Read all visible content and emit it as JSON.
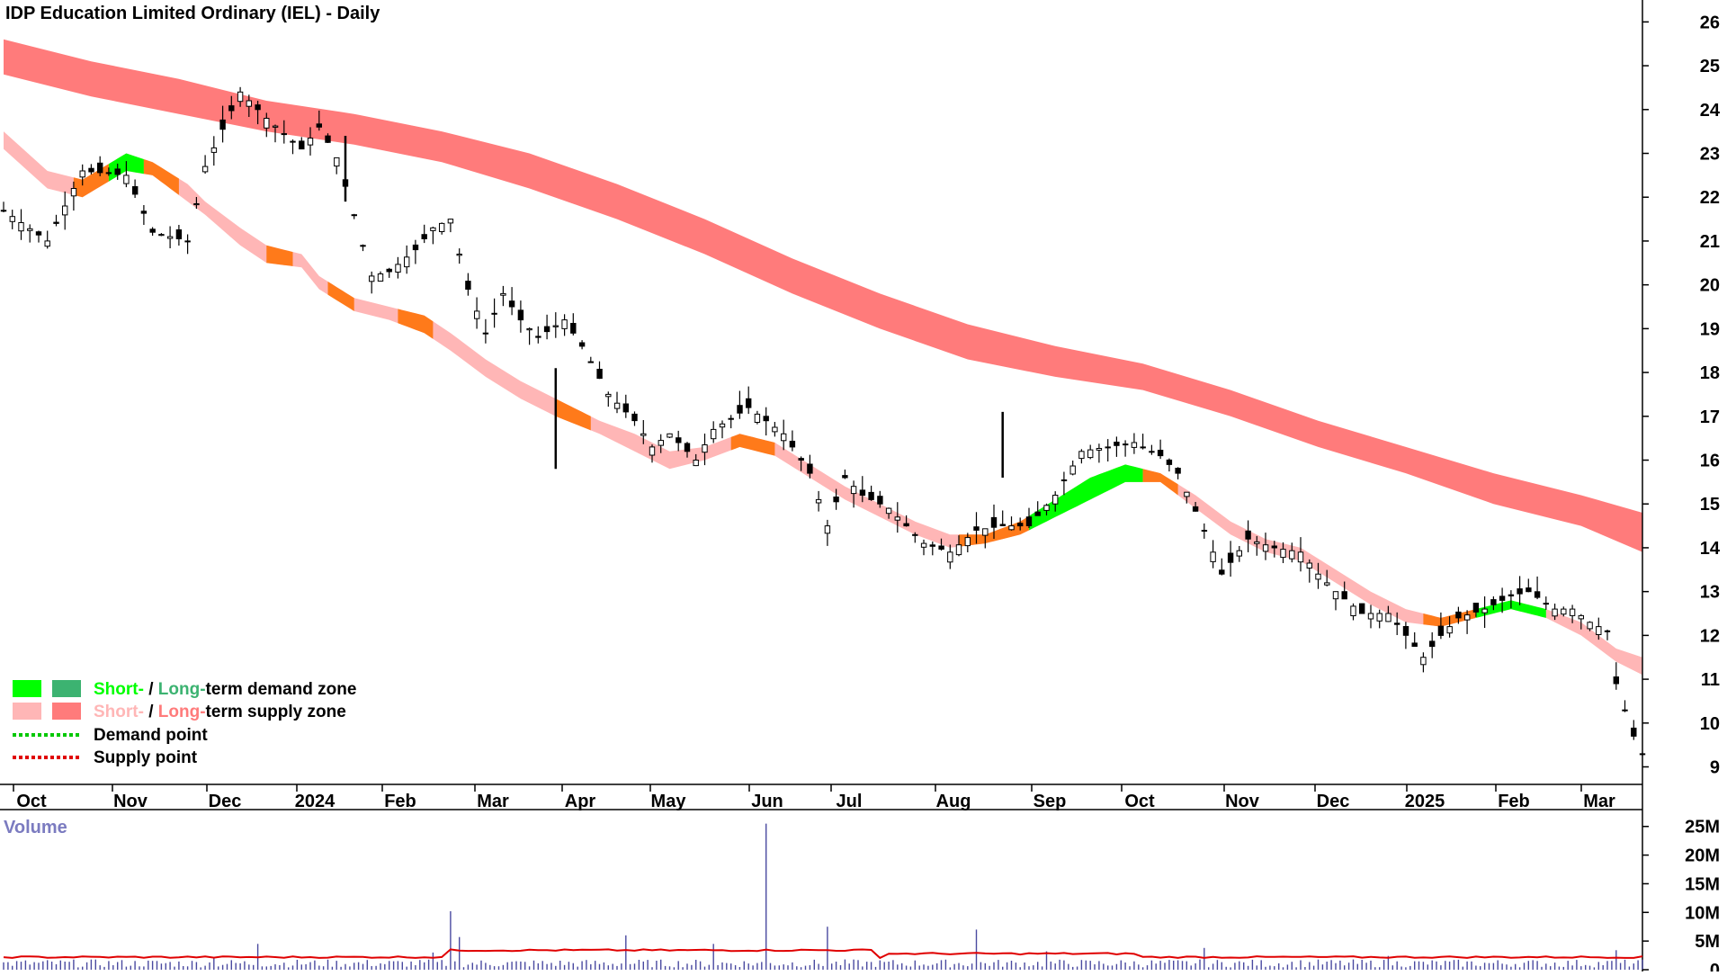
{
  "chart_data": {
    "type": "candlestick",
    "title": "IDP Education Limited Ordinary (IEL) - Daily",
    "x_tick_labels": [
      "Oct",
      "Nov",
      "Dec",
      "2024",
      "Feb",
      "Mar",
      "Apr",
      "May",
      "Jun",
      "Jul",
      "Aug",
      "Sep",
      "Oct",
      "Nov",
      "Dec",
      "2025",
      "Feb",
      "Mar"
    ],
    "price_axis": {
      "ticks": [
        9,
        10,
        11,
        12,
        13,
        14,
        15,
        16,
        17,
        18,
        19,
        20,
        21,
        22,
        23,
        24,
        25,
        26
      ],
      "ylim": [
        8.6,
        26.5
      ]
    },
    "price_path": [
      [
        0,
        21.7
      ],
      [
        5,
        21.0
      ],
      [
        9,
        22.6
      ],
      [
        14,
        22.5
      ],
      [
        17,
        21.2
      ],
      [
        21,
        21.0
      ],
      [
        23,
        22.7
      ],
      [
        27,
        24.4
      ],
      [
        30,
        23.8
      ],
      [
        34,
        23.1
      ],
      [
        36,
        23.6
      ],
      [
        38,
        22.9
      ],
      [
        40,
        21.6
      ],
      [
        42,
        20.2
      ],
      [
        44,
        20.3
      ],
      [
        47,
        20.8
      ],
      [
        49,
        21.3
      ],
      [
        51,
        21.5
      ],
      [
        53,
        19.9
      ],
      [
        55,
        18.9
      ],
      [
        57,
        19.8
      ],
      [
        59,
        19.2
      ],
      [
        61,
        18.8
      ],
      [
        64,
        19.2
      ],
      [
        66,
        18.6
      ],
      [
        69,
        17.5
      ],
      [
        72,
        16.9
      ],
      [
        74,
        16.3
      ],
      [
        76,
        16.6
      ],
      [
        79,
        16.0
      ],
      [
        81,
        16.7
      ],
      [
        85,
        17.2
      ],
      [
        89,
        16.6
      ],
      [
        92,
        15.7
      ],
      [
        94,
        14.5
      ],
      [
        96,
        15.6
      ],
      [
        98,
        15.2
      ],
      [
        101,
        14.9
      ],
      [
        105,
        14.1
      ],
      [
        108,
        13.9
      ],
      [
        111,
        14.4
      ],
      [
        114,
        14.5
      ],
      [
        117,
        14.5
      ],
      [
        120,
        15.2
      ],
      [
        123,
        16.2
      ],
      [
        126,
        16.3
      ],
      [
        129,
        16.4
      ],
      [
        132,
        16.1
      ],
      [
        134,
        15.7
      ],
      [
        137,
        14.4
      ],
      [
        139,
        13.4
      ],
      [
        142,
        14.2
      ],
      [
        145,
        14.0
      ],
      [
        148,
        13.9
      ],
      [
        150,
        13.4
      ],
      [
        152,
        13.0
      ],
      [
        155,
        12.5
      ],
      [
        158,
        12.5
      ],
      [
        160,
        12.0
      ],
      [
        162,
        11.5
      ],
      [
        164,
        12.0
      ],
      [
        166,
        12.4
      ],
      [
        169,
        12.6
      ],
      [
        172,
        12.9
      ],
      [
        174,
        13.0
      ],
      [
        177,
        12.6
      ],
      [
        179,
        12.6
      ],
      [
        181,
        12.3
      ],
      [
        183,
        12.1
      ],
      [
        184,
        10.9
      ],
      [
        185,
        10.3
      ],
      [
        186,
        9.7
      ],
      [
        187,
        9.3
      ]
    ],
    "short_term_band": [
      [
        0,
        23.5,
        23.1
      ],
      [
        5,
        22.6,
        22.2
      ],
      [
        9,
        22.4,
        22.0
      ],
      [
        14,
        23.0,
        22.6
      ],
      [
        17,
        22.8,
        22.5
      ],
      [
        21,
        22.3,
        21.9
      ],
      [
        23,
        21.9,
        21.6
      ],
      [
        27,
        21.3,
        20.9
      ],
      [
        30,
        20.9,
        20.5
      ],
      [
        34,
        20.7,
        20.4
      ],
      [
        36,
        20.2,
        19.9
      ],
      [
        40,
        19.7,
        19.4
      ],
      [
        44,
        19.5,
        19.2
      ],
      [
        48,
        19.3,
        18.9
      ],
      [
        51,
        18.9,
        18.5
      ],
      [
        55,
        18.3,
        17.9
      ],
      [
        59,
        17.8,
        17.4
      ],
      [
        63,
        17.4,
        17.0
      ],
      [
        68,
        16.9,
        16.6
      ],
      [
        72,
        16.6,
        16.2
      ],
      [
        76,
        16.2,
        15.8
      ],
      [
        80,
        16.3,
        16.0
      ],
      [
        84,
        16.6,
        16.3
      ],
      [
        88,
        16.4,
        16.1
      ],
      [
        92,
        15.9,
        15.6
      ],
      [
        96,
        15.4,
        15.1
      ],
      [
        100,
        15.0,
        14.7
      ],
      [
        104,
        14.6,
        14.3
      ],
      [
        108,
        14.3,
        14.0
      ],
      [
        112,
        14.3,
        14.1
      ],
      [
        116,
        14.6,
        14.3
      ],
      [
        120,
        15.1,
        14.7
      ],
      [
        124,
        15.6,
        15.1
      ],
      [
        128,
        15.9,
        15.5
      ],
      [
        132,
        15.7,
        15.5
      ],
      [
        136,
        15.2,
        14.9
      ],
      [
        140,
        14.6,
        14.3
      ],
      [
        144,
        14.2,
        13.9
      ],
      [
        148,
        14.0,
        13.7
      ],
      [
        152,
        13.5,
        13.2
      ],
      [
        156,
        13.0,
        12.7
      ],
      [
        160,
        12.6,
        12.3
      ],
      [
        164,
        12.4,
        12.2
      ],
      [
        168,
        12.6,
        12.4
      ],
      [
        172,
        12.8,
        12.6
      ],
      [
        176,
        12.6,
        12.4
      ],
      [
        180,
        12.3,
        12.0
      ],
      [
        184,
        11.7,
        11.4
      ],
      [
        187,
        11.5,
        11.1
      ]
    ],
    "long_term_band": [
      [
        0,
        25.6,
        24.8
      ],
      [
        10,
        25.1,
        24.3
      ],
      [
        20,
        24.7,
        23.9
      ],
      [
        30,
        24.2,
        23.5
      ],
      [
        40,
        23.9,
        23.2
      ],
      [
        50,
        23.5,
        22.8
      ],
      [
        60,
        23.0,
        22.2
      ],
      [
        70,
        22.3,
        21.5
      ],
      [
        80,
        21.5,
        20.7
      ],
      [
        90,
        20.6,
        19.8
      ],
      [
        100,
        19.8,
        19.0
      ],
      [
        110,
        19.1,
        18.3
      ],
      [
        120,
        18.6,
        17.9
      ],
      [
        130,
        18.2,
        17.6
      ],
      [
        140,
        17.6,
        17.0
      ],
      [
        150,
        16.9,
        16.3
      ],
      [
        160,
        16.3,
        15.7
      ],
      [
        170,
        15.7,
        15.0
      ],
      [
        180,
        15.2,
        14.5
      ],
      [
        187,
        14.8,
        13.9
      ]
    ],
    "volume_axis": {
      "ticks": [
        "0",
        "5M",
        "10M",
        "15M",
        "20M",
        "25M"
      ],
      "ylim_millions": [
        0,
        27
      ]
    },
    "volume_spikes_millions": [
      [
        24,
        2.2
      ],
      [
        29,
        4.5
      ],
      [
        49,
        3.0
      ],
      [
        51,
        10.2
      ],
      [
        52,
        5.7
      ],
      [
        71,
        6.0
      ],
      [
        81,
        4.5
      ],
      [
        87,
        25.5
      ],
      [
        94,
        7.5
      ],
      [
        111,
        7.0
      ],
      [
        119,
        3.2
      ],
      [
        137,
        3.8
      ],
      [
        158,
        2.4
      ],
      [
        184,
        3.4
      ]
    ],
    "volume_average_millions": 2.2,
    "colors": {
      "short_demand": "#00ff00",
      "long_demand": "#3cb371",
      "short_supply": "#ffb6b6",
      "long_supply": "#ff7b7b",
      "demand_point": "#00c800",
      "supply_point": "#e00000",
      "volume_bar": "#4a4aa0",
      "volume_average": "#e00000",
      "volume_label": "#7b7bc0",
      "short_band_transition": "#ff7a1a"
    },
    "legend": {
      "placement": "bottom-left",
      "items": [
        {
          "type": "zone",
          "swatches": [
            "short_demand",
            "long_demand"
          ],
          "part1": "Short-",
          "sep": " / ",
          "part2": "Long-",
          "rest": "term demand zone",
          "c1": "#00ff00",
          "c2": "#3cb371"
        },
        {
          "type": "zone",
          "swatches": [
            "short_supply",
            "long_supply"
          ],
          "part1": "Short-",
          "sep": " / ",
          "part2": "Long-",
          "rest": "term supply zone",
          "c1": "#ffb6b6",
          "c2": "#ff7b7b"
        },
        {
          "type": "point",
          "color": "demand_point",
          "text": "Demand point"
        },
        {
          "type": "point",
          "color": "supply_point",
          "text": "Supply point"
        }
      ]
    },
    "volume_label": "Volume"
  }
}
